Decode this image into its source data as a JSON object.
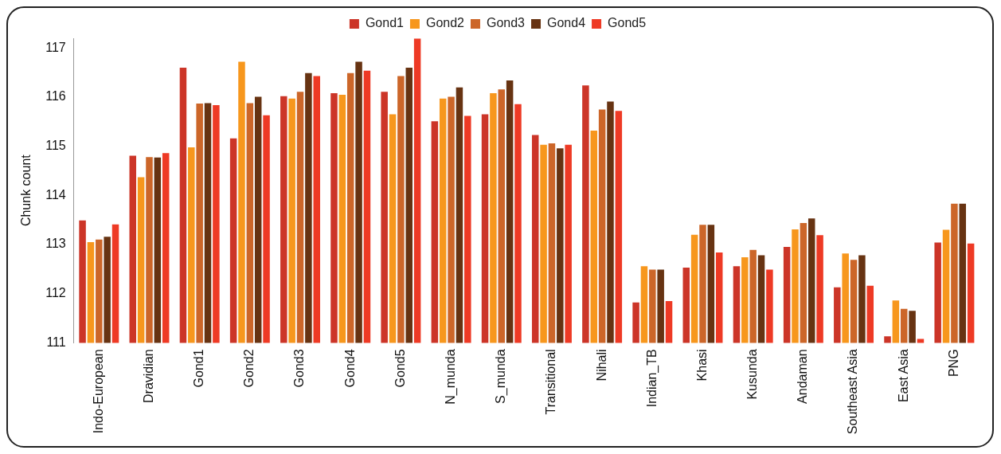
{
  "chart_data": {
    "type": "bar",
    "ylabel": "Chunk count",
    "categories": [
      "Indo-European",
      "Dravidian",
      "Gond1",
      "Gond2",
      "Gond3",
      "Gond4",
      "Gond5",
      "N_munda",
      "S_munda",
      "Transitional",
      "Nihali",
      "Indian_TB",
      "Khasi",
      "Kusunda",
      "Andaman",
      "Southeast Asia",
      "East Asia",
      "PNG"
    ],
    "series": [
      {
        "name": "Gond1",
        "color": "#cc3528",
        "values": [
          113.49,
          114.81,
          116.6,
          115.16,
          116.02,
          116.08,
          116.11,
          115.51,
          115.65,
          115.23,
          116.24,
          111.82,
          112.53,
          112.56,
          112.95,
          112.13,
          111.13,
          113.04
        ]
      },
      {
        "name": "Gond2",
        "color": "#f7971d",
        "values": [
          113.05,
          114.37,
          114.98,
          116.72,
          115.97,
          116.05,
          115.65,
          115.97,
          116.08,
          115.03,
          115.32,
          112.56,
          113.2,
          112.74,
          113.31,
          112.82,
          111.86,
          113.3
        ]
      },
      {
        "name": "Gond3",
        "color": "#cc6629",
        "values": [
          113.1,
          114.78,
          115.87,
          115.88,
          116.11,
          116.49,
          116.43,
          116.01,
          116.16,
          115.06,
          115.75,
          112.49,
          113.4,
          112.89,
          113.44,
          112.69,
          111.69,
          113.83
        ]
      },
      {
        "name": "Gond4",
        "color": "#673312",
        "values": [
          113.16,
          114.77,
          115.88,
          116.01,
          116.49,
          116.72,
          116.6,
          116.2,
          116.34,
          114.96,
          115.91,
          112.49,
          113.4,
          112.78,
          113.53,
          112.78,
          111.65,
          113.83
        ]
      },
      {
        "name": "Gond5",
        "color": "#ee3a25",
        "values": [
          113.41,
          114.86,
          115.84,
          115.63,
          116.43,
          116.54,
          117.19,
          115.62,
          115.86,
          115.03,
          115.72,
          111.85,
          112.84,
          112.49,
          113.19,
          112.16,
          111.08,
          113.02
        ]
      }
    ],
    "ylim": [
      111,
      117.2
    ],
    "yticks": [
      111,
      112,
      113,
      114,
      115,
      116,
      117
    ],
    "grid": false,
    "legend": "top"
  }
}
